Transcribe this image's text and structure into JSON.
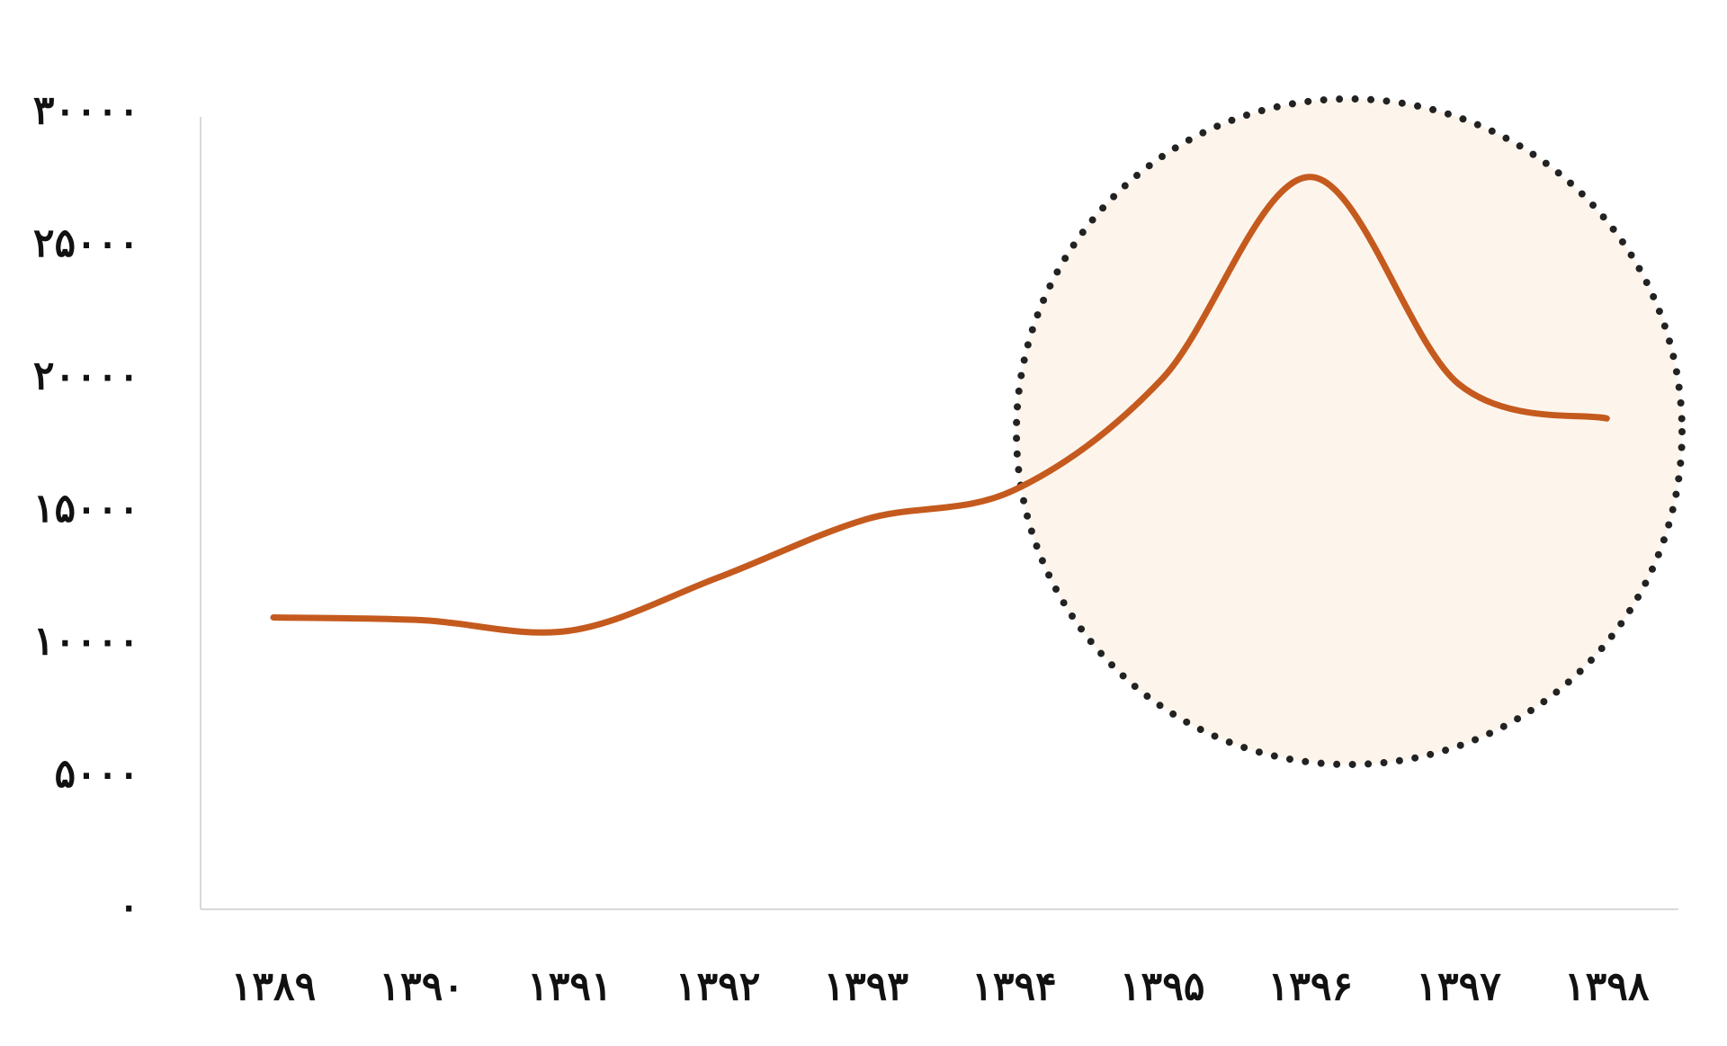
{
  "chart_data": {
    "type": "line",
    "categories": [
      "۱۳۸۹",
      "۱۳۹۰",
      "۱۳۹۱",
      "۱۳۹۲",
      "۱۳۹۳",
      "۱۳۹۴",
      "۱۳۹۵",
      "۱۳۹۶",
      "۱۳۹۷",
      "۱۳۹۸"
    ],
    "values": [
      11000,
      10900,
      10500,
      12500,
      14700,
      15800,
      20000,
      27600,
      19800,
      18500
    ],
    "color": "#c55a1e",
    "ylim": [
      0,
      30000
    ],
    "yticks": [
      {
        "value": 0,
        "label": "۰"
      },
      {
        "value": 5000,
        "label": "۵۰۰۰"
      },
      {
        "value": 10000,
        "label": "۱۰۰۰۰"
      },
      {
        "value": 15000,
        "label": "۱۵۰۰۰"
      },
      {
        "value": 20000,
        "label": "۲۰۰۰۰"
      },
      {
        "value": 25000,
        "label": "۲۵۰۰۰"
      },
      {
        "value": 30000,
        "label": "۳۰۰۰۰"
      }
    ],
    "grid": false
  }
}
